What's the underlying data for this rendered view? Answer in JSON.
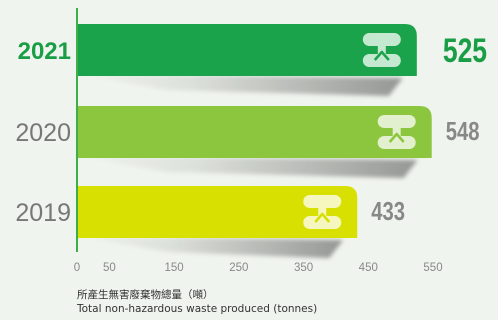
{
  "chart_data": {
    "type": "bar",
    "orientation": "horizontal",
    "categories": [
      "2021",
      "2020",
      "2019"
    ],
    "values": [
      525,
      548,
      433
    ],
    "value_labels": [
      "525",
      "548",
      "433"
    ],
    "xlim": [
      0,
      550
    ],
    "xticks": [
      "0",
      "50",
      "150",
      "250",
      "350",
      "450",
      "550"
    ],
    "xticks_values": [
      0,
      50,
      150,
      250,
      350,
      450,
      550
    ],
    "xlabel_zh": "所產生無害廢棄物總量（噸）",
    "xlabel": "Total non-hazardous waste produced (tonnes)",
    "highlight_category": "2021",
    "grid": false,
    "colors": {
      "bars": [
        "#1aa34a",
        "#8cc63f",
        "#d7e000"
      ],
      "category_labels": [
        "#1a9e45",
        "#777777",
        "#777777"
      ],
      "value_labels": [
        "#1a9e45",
        "#888888",
        "#888888"
      ],
      "axis": "#3fae49",
      "tick_text": "#888888",
      "logo": "#ffffff"
    },
    "logo_icon": "company-logo-icon"
  }
}
